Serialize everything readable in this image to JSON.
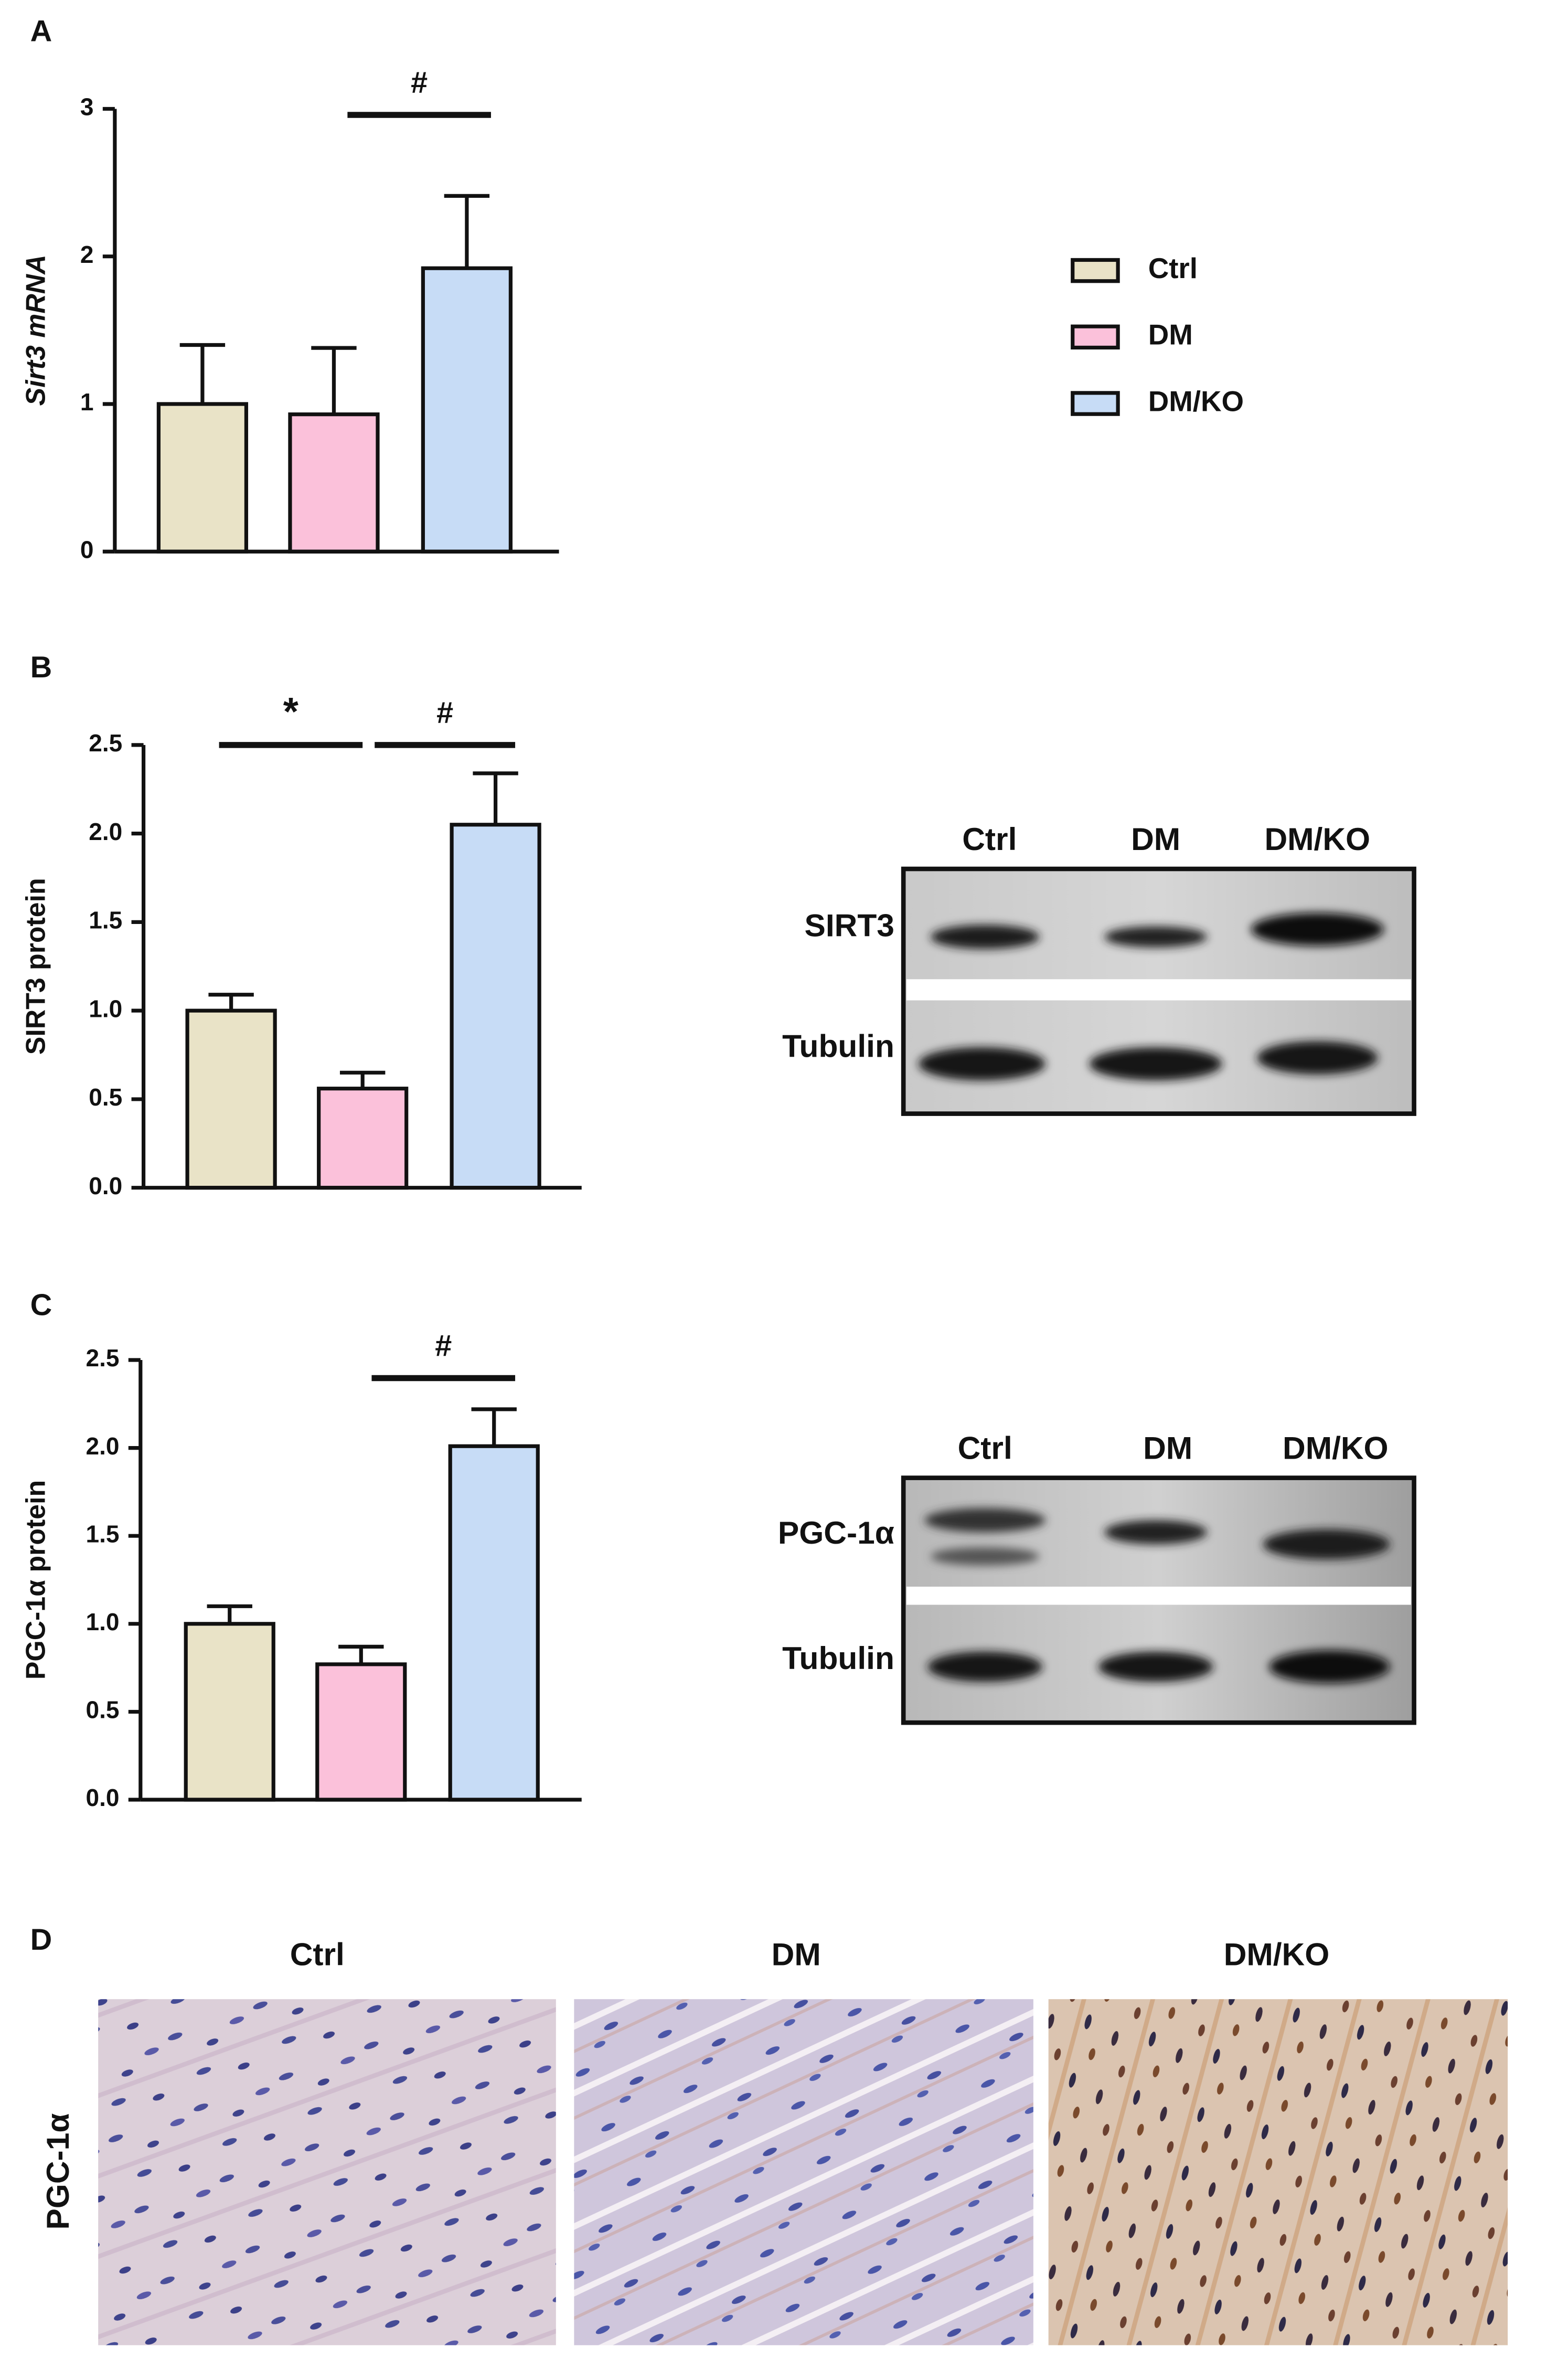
{
  "panels": {
    "a": "A",
    "b": "B",
    "c": "C",
    "d": "D"
  },
  "chart_data": [
    {
      "type": "bar",
      "ylabel": "Sirt3 mRNA",
      "ylim": [
        0,
        3
      ],
      "yticks": [
        0,
        1,
        2,
        3
      ],
      "legend": "right",
      "annotations": [
        "#"
      ],
      "series": [
        {
          "name": "Ctrl",
          "color": "#e9e3c7",
          "values": [
            1.0
          ],
          "errors": [
            0.4
          ]
        },
        {
          "name": "DM",
          "color": "#fbc1da",
          "values": [
            0.93
          ],
          "errors": [
            0.45
          ]
        },
        {
          "name": "DM/KO",
          "color": "#c7dcf6",
          "values": [
            1.92
          ],
          "errors": [
            0.49
          ]
        }
      ]
    },
    {
      "type": "bar",
      "ylabel": "SIRT3 protein",
      "ylim": [
        0,
        2.5
      ],
      "yticks": [
        {
          "value": 0,
          "label": "0.0"
        },
        0.5,
        {
          "value": 1,
          "label": "1.0"
        },
        1.5,
        {
          "value": 2,
          "label": "2.0"
        },
        2.5
      ],
      "annotations": [
        "*",
        "#"
      ],
      "series": [
        {
          "color": "#e9e3c7",
          "values": [
            1.0
          ],
          "errors": [
            0.09
          ]
        },
        {
          "color": "#fbc1da",
          "values": [
            0.56
          ],
          "errors": [
            0.09
          ]
        },
        {
          "color": "#c7dcf6",
          "values": [
            2.05
          ],
          "errors": [
            0.29
          ]
        }
      ]
    },
    {
      "type": "bar",
      "ylabel": "PGC-1α protein",
      "ylim": [
        0,
        2.5
      ],
      "yticks": [
        {
          "value": 0,
          "label": "0.0"
        },
        0.5,
        {
          "value": 1,
          "label": "1.0"
        },
        1.5,
        {
          "value": 2,
          "label": "2.0"
        },
        2.5
      ],
      "annotations": [
        "#"
      ],
      "series": [
        {
          "color": "#e9e3c7",
          "values": [
            1.0
          ],
          "errors": [
            0.1
          ]
        },
        {
          "color": "#fbc1da",
          "values": [
            0.77
          ],
          "errors": [
            0.1
          ]
        },
        {
          "color": "#c7dcf6",
          "values": [
            2.01
          ],
          "errors": [
            0.21
          ]
        }
      ]
    }
  ],
  "blots": [
    {
      "lanes": [
        "Ctrl",
        "DM",
        "DM/KO"
      ],
      "rows": [
        "SIRT3",
        "Tubulin"
      ]
    },
    {
      "lanes": [
        "Ctrl",
        "DM",
        "DM/KO"
      ],
      "rows": [
        "PGC-1α",
        "Tubulin"
      ]
    }
  ],
  "histology": {
    "columns": [
      "Ctrl",
      "DM",
      "DM/KO"
    ],
    "row": "PGC-1α"
  }
}
